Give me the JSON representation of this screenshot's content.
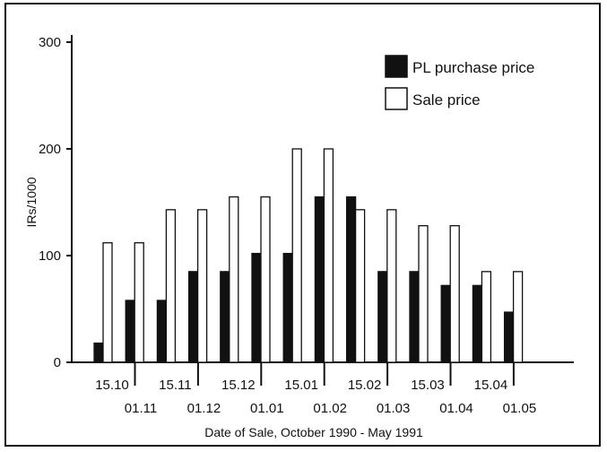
{
  "chart_data": {
    "type": "bar",
    "title": "",
    "xlabel": "Date of Sale, October 1990 - May 1991",
    "ylabel": "IRs/1000",
    "ylim": [
      0,
      300
    ],
    "yticks": [
      0,
      100,
      200,
      300
    ],
    "legend_position": "top-right",
    "grid": false,
    "categories": [
      "15.10",
      "01.11",
      "15.11",
      "01.12",
      "15.12",
      "01.01",
      "15.01",
      "01.02",
      "15.02",
      "01.03",
      "15.03",
      "01.04",
      "15.04",
      "01.05"
    ],
    "series": [
      {
        "name": "PL purchase price",
        "color": "#111111",
        "values": [
          18,
          58,
          58,
          85,
          85,
          102,
          102,
          155,
          155,
          85,
          85,
          72,
          72,
          47
        ]
      },
      {
        "name": "Sale price",
        "color": "#ffffff",
        "values": [
          112,
          112,
          143,
          143,
          155,
          155,
          200,
          200,
          143,
          143,
          128,
          128,
          85,
          85
        ]
      }
    ]
  }
}
